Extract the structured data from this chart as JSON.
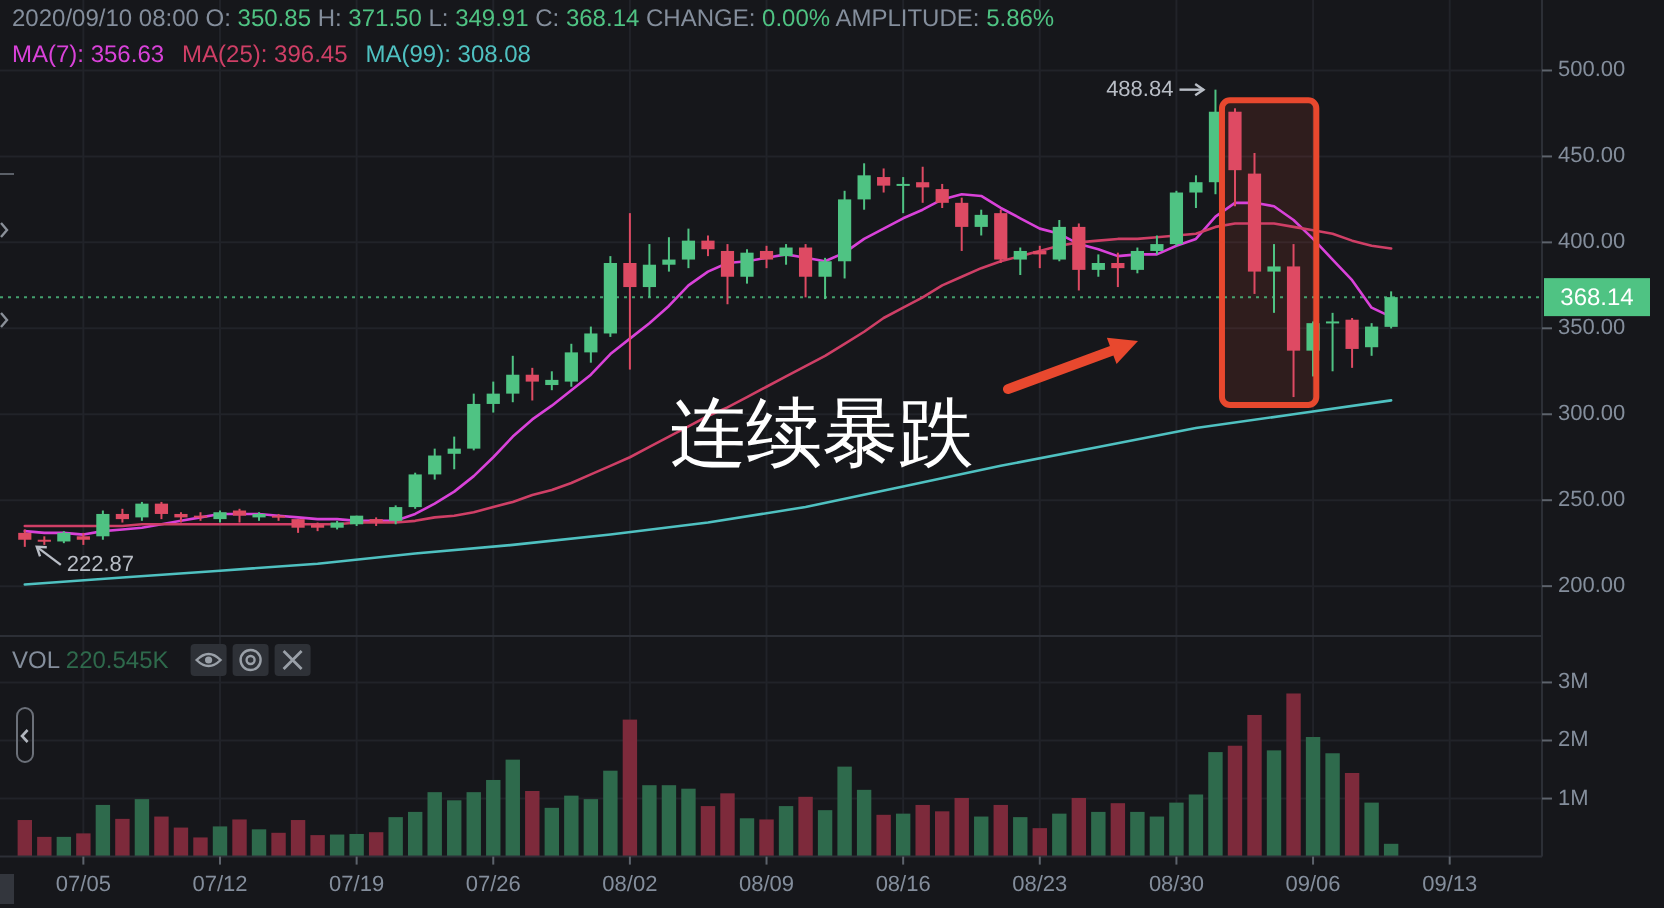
{
  "chart_data": [
    {
      "type": "candlestick",
      "title": "2020/09/10 08:00 O: 350.85 H: 371.50 L: 349.91 C: 368.14 CHANGE: 0.00% AMPLITUDE: 5.86%",
      "x": [
        "2020-07-02",
        "2020-07-03",
        "2020-07-04",
        "2020-07-05",
        "2020-07-06",
        "2020-07-07",
        "2020-07-08",
        "2020-07-09",
        "2020-07-10",
        "2020-07-11",
        "2020-07-12",
        "2020-07-13",
        "2020-07-14",
        "2020-07-15",
        "2020-07-16",
        "2020-07-17",
        "2020-07-18",
        "2020-07-19",
        "2020-07-20",
        "2020-07-21",
        "2020-07-22",
        "2020-07-23",
        "2020-07-24",
        "2020-07-25",
        "2020-07-26",
        "2020-07-27",
        "2020-07-28",
        "2020-07-29",
        "2020-07-30",
        "2020-07-31",
        "2020-08-01",
        "2020-08-02",
        "2020-08-03",
        "2020-08-04",
        "2020-08-05",
        "2020-08-06",
        "2020-08-07",
        "2020-08-08",
        "2020-08-09",
        "2020-08-10",
        "2020-08-11",
        "2020-08-12",
        "2020-08-13",
        "2020-08-14",
        "2020-08-15",
        "2020-08-16",
        "2020-08-17",
        "2020-08-18",
        "2020-08-19",
        "2020-08-20",
        "2020-08-21",
        "2020-08-22",
        "2020-08-23",
        "2020-08-24",
        "2020-08-25",
        "2020-08-26",
        "2020-08-27",
        "2020-08-28",
        "2020-08-29",
        "2020-08-30",
        "2020-08-31",
        "2020-09-01",
        "2020-09-02",
        "2020-09-03",
        "2020-09-04",
        "2020-09-05",
        "2020-09-06",
        "2020-09-07",
        "2020-09-08",
        "2020-09-09",
        "2020-09-10"
      ],
      "ohlc": [
        [
          231,
          233,
          222.87,
          227
        ],
        [
          227,
          229,
          224,
          226
        ],
        [
          226,
          232,
          225,
          231
        ],
        [
          229,
          231,
          224,
          227
        ],
        [
          229,
          244,
          227,
          242
        ],
        [
          242,
          245,
          237,
          239
        ],
        [
          240,
          249,
          238,
          248
        ],
        [
          248,
          249,
          239,
          242
        ],
        [
          242,
          243,
          237,
          240
        ],
        [
          241,
          243,
          238,
          240
        ],
        [
          239,
          244,
          237,
          243
        ],
        [
          244,
          245,
          237,
          241
        ],
        [
          240,
          243,
          238,
          242
        ],
        [
          241,
          242,
          238,
          240
        ],
        [
          239,
          239,
          231,
          234
        ],
        [
          236,
          237,
          232,
          234
        ],
        [
          234,
          238,
          233,
          237
        ],
        [
          236,
          241,
          235,
          241
        ],
        [
          239,
          240,
          235,
          237
        ],
        [
          238,
          247,
          236,
          246
        ],
        [
          246,
          266,
          245,
          265
        ],
        [
          265,
          280,
          262,
          276
        ],
        [
          277,
          287,
          268,
          280
        ],
        [
          280,
          312,
          279,
          306
        ],
        [
          306,
          319,
          301,
          312
        ],
        [
          312,
          334,
          307,
          323
        ],
        [
          323,
          327,
          308,
          319
        ],
        [
          317,
          325,
          314,
          320
        ],
        [
          319,
          341,
          316,
          336
        ],
        [
          336,
          351,
          330,
          347
        ],
        [
          347,
          392,
          345,
          388
        ],
        [
          388,
          417,
          326,
          374
        ],
        [
          374,
          399,
          368,
          387
        ],
        [
          387,
          403,
          383,
          390
        ],
        [
          390,
          408,
          385,
          401
        ],
        [
          401,
          404,
          392,
          396
        ],
        [
          395,
          399,
          364,
          380
        ],
        [
          380,
          396,
          376,
          394
        ],
        [
          395,
          398,
          385,
          390
        ],
        [
          392,
          399,
          387,
          397
        ],
        [
          397,
          399,
          368,
          380
        ],
        [
          380,
          391,
          367,
          389
        ],
        [
          389,
          430,
          379,
          425
        ],
        [
          425,
          446,
          419,
          439
        ],
        [
          438,
          443,
          429,
          433
        ],
        [
          433,
          438,
          417,
          434
        ],
        [
          435,
          444,
          423,
          432
        ],
        [
          431,
          434,
          420,
          423
        ],
        [
          423,
          426,
          395,
          409
        ],
        [
          409,
          419,
          404,
          416
        ],
        [
          417,
          419,
          388,
          390
        ],
        [
          390,
          397,
          381,
          395
        ],
        [
          395,
          398,
          385,
          393
        ],
        [
          390,
          413,
          389,
          409
        ],
        [
          409,
          411,
          372,
          384
        ],
        [
          384,
          393,
          380,
          388
        ],
        [
          388,
          394,
          374,
          385
        ],
        [
          384,
          397,
          382,
          395
        ],
        [
          395,
          404,
          393,
          399
        ],
        [
          399,
          430,
          398,
          429
        ],
        [
          429,
          439,
          420,
          435
        ],
        [
          435,
          488.84,
          428,
          476
        ],
        [
          476,
          478,
          421,
          442
        ],
        [
          440,
          452,
          370,
          383
        ],
        [
          383,
          399,
          359,
          386
        ],
        [
          386,
          399,
          310,
          337
        ],
        [
          337,
          354,
          322,
          353
        ],
        [
          353,
          359,
          325,
          354
        ],
        [
          355,
          356,
          327,
          338
        ],
        [
          339,
          353,
          334,
          351
        ],
        [
          350.85,
          371.5,
          349.91,
          368.14
        ]
      ],
      "colors": [
        "#de4a63",
        "#de4a63",
        "#4fc383",
        "#de4a63",
        "#4fc383",
        "#de4a63",
        "#4fc383",
        "#de4a63",
        "#de4a63",
        "#de4a63",
        "#4fc383",
        "#de4a63",
        "#4fc383",
        "#de4a63",
        "#de4a63",
        "#de4a63",
        "#4fc383",
        "#4fc383",
        "#de4a63",
        "#4fc383",
        "#4fc383",
        "#4fc383",
        "#4fc383",
        "#4fc383",
        "#4fc383",
        "#4fc383",
        "#de4a63",
        "#4fc383",
        "#4fc383",
        "#4fc383",
        "#4fc383",
        "#de4a63",
        "#4fc383",
        "#4fc383",
        "#4fc383",
        "#de4a63",
        "#de4a63",
        "#4fc383",
        "#de4a63",
        "#4fc383",
        "#de4a63",
        "#4fc383",
        "#4fc383",
        "#4fc383",
        "#de4a63",
        "#4fc383",
        "#de4a63",
        "#de4a63",
        "#de4a63",
        "#4fc383",
        "#de4a63",
        "#4fc383",
        "#de4a63",
        "#4fc383",
        "#de4a63",
        "#4fc383",
        "#de4a63",
        "#4fc383",
        "#4fc383",
        "#4fc383",
        "#4fc383",
        "#4fc383",
        "#de4a63",
        "#de4a63",
        "#4fc383",
        "#de4a63",
        "#4fc383",
        "#4fc383",
        "#de4a63",
        "#4fc383",
        "#4fc383"
      ],
      "series": [
        {
          "name": "MA(7): 356.63",
          "type": "line",
          "color": "#d942d9",
          "values": [
            232,
            231,
            231,
            230,
            232,
            233,
            234,
            236,
            238,
            240,
            242,
            242,
            242,
            241,
            240,
            239,
            239,
            238,
            238,
            238,
            242,
            248,
            255,
            264,
            275,
            287,
            297,
            305,
            314,
            323,
            335,
            344,
            353,
            363,
            375,
            383,
            388,
            389,
            391,
            393,
            391,
            389,
            394,
            402,
            408,
            414,
            419,
            425,
            428,
            427,
            420,
            414,
            408,
            405,
            399,
            396,
            392,
            393,
            393,
            398,
            402,
            415,
            423,
            423,
            421,
            413,
            402,
            390,
            378,
            362,
            356.63
          ]
        },
        {
          "name": "MA(25): 396.45",
          "type": "line",
          "color": "#cf3f66",
          "values": [
            235,
            235,
            235,
            235,
            235,
            235,
            236,
            236,
            236,
            236,
            236,
            236,
            236,
            236,
            236,
            236,
            236,
            237,
            237,
            237,
            238,
            240,
            241,
            243,
            246,
            249,
            253,
            256,
            260,
            265,
            270,
            275,
            281,
            287,
            293,
            299,
            304,
            310,
            316,
            322,
            328,
            334,
            341,
            348,
            356,
            362,
            368,
            375,
            380,
            385,
            389,
            392,
            395,
            398,
            400,
            401,
            402,
            402,
            403,
            404,
            405,
            409,
            411,
            411,
            411,
            409,
            407,
            405,
            401,
            398,
            396.45
          ]
        },
        {
          "name": "MA(99): 308.08",
          "type": "line",
          "color": "#4fc1c1",
          "x": [
            "2020-07-02",
            "2020-07-07",
            "2020-07-12",
            "2020-07-17",
            "2020-07-22",
            "2020-07-27",
            "2020-08-01",
            "2020-08-06",
            "2020-08-11",
            "2020-08-16",
            "2020-08-21",
            "2020-08-26",
            "2020-08-31",
            "2020-09-05",
            "2020-09-10"
          ],
          "values": [
            201,
            205,
            209,
            213,
            219,
            224,
            230,
            237,
            246,
            258,
            270,
            281,
            292,
            300,
            308.08
          ]
        }
      ],
      "xlim": [
        "2020-06-30T17:30",
        "2020-09-17T17:30"
      ],
      "ylim": [
        171,
        541
      ],
      "xticks": [
        {
          "value": "2020-07-05",
          "label": null
        },
        {
          "value": "2020-07-12",
          "label": null
        },
        {
          "value": "2020-07-19",
          "label": null
        },
        {
          "value": "2020-07-26",
          "label": null
        },
        {
          "value": "2020-08-02",
          "label": null
        },
        {
          "value": "2020-08-09",
          "label": null
        },
        {
          "value": "2020-08-16",
          "label": null
        },
        {
          "value": "2020-08-23",
          "label": null
        },
        {
          "value": "2020-08-30",
          "label": null
        },
        {
          "value": "2020-09-06",
          "label": null
        },
        {
          "value": "2020-09-13",
          "label": null
        }
      ],
      "yticks": [
        {
          "value": 200,
          "label": "200.00"
        },
        {
          "value": 250,
          "label": "250.00"
        },
        {
          "value": 300,
          "label": "300.00"
        },
        {
          "value": 350,
          "label": "350.00"
        },
        {
          "value": 400,
          "label": "400.00"
        },
        {
          "value": 450,
          "label": "450.00"
        },
        {
          "value": 500,
          "label": "500.00"
        }
      ],
      "tick_labels": "y",
      "grid": true,
      "legend": "top left",
      "ref_lines": [
        {
          "axis": "y",
          "value": 368.14,
          "label": "368.14",
          "color": "#4fc383",
          "line_style": "dotted"
        }
      ],
      "bands": [
        {
          "axis": "x",
          "from": "2020-09-01T08:00",
          "to": "2020-09-06T04:00",
          "color": "#e8482e"
        }
      ],
      "annotations": [
        {
          "text": "222.87",
          "x": "2020-07-02",
          "y": 222.87
        },
        {
          "text": "488.84",
          "x": "2020-09-01",
          "y": 488.84
        },
        "连续暴跌"
      ]
    },
    {
      "type": "bar",
      "x": [
        "2020-07-02",
        "2020-07-03",
        "2020-07-04",
        "2020-07-05",
        "2020-07-06",
        "2020-07-07",
        "2020-07-08",
        "2020-07-09",
        "2020-07-10",
        "2020-07-11",
        "2020-07-12",
        "2020-07-13",
        "2020-07-14",
        "2020-07-15",
        "2020-07-16",
        "2020-07-17",
        "2020-07-18",
        "2020-07-19",
        "2020-07-20",
        "2020-07-21",
        "2020-07-22",
        "2020-07-23",
        "2020-07-24",
        "2020-07-25",
        "2020-07-26",
        "2020-07-27",
        "2020-07-28",
        "2020-07-29",
        "2020-07-30",
        "2020-07-31",
        "2020-08-01",
        "2020-08-02",
        "2020-08-03",
        "2020-08-04",
        "2020-08-05",
        "2020-08-06",
        "2020-08-07",
        "2020-08-08",
        "2020-08-09",
        "2020-08-10",
        "2020-08-11",
        "2020-08-12",
        "2020-08-13",
        "2020-08-14",
        "2020-08-15",
        "2020-08-16",
        "2020-08-17",
        "2020-08-18",
        "2020-08-19",
        "2020-08-20",
        "2020-08-21",
        "2020-08-22",
        "2020-08-23",
        "2020-08-24",
        "2020-08-25",
        "2020-08-26",
        "2020-08-27",
        "2020-08-28",
        "2020-08-29",
        "2020-08-30",
        "2020-08-31",
        "2020-09-01",
        "2020-09-02",
        "2020-09-03",
        "2020-09-04",
        "2020-09-05",
        "2020-09-06",
        "2020-09-07",
        "2020-09-08",
        "2020-09-09",
        "2020-09-10"
      ],
      "series": [
        {
          "name": "VOL 220.545K",
          "values": [
            0.63,
            0.34,
            0.34,
            0.4,
            0.89,
            0.65,
            0.99,
            0.69,
            0.5,
            0.33,
            0.52,
            0.64,
            0.47,
            0.41,
            0.63,
            0.37,
            0.38,
            0.39,
            0.42,
            0.68,
            0.77,
            1.11,
            0.97,
            1.11,
            1.32,
            1.67,
            1.13,
            0.84,
            1.05,
            0.99,
            1.48,
            2.36,
            1.23,
            1.23,
            1.17,
            0.87,
            1.09,
            0.66,
            0.64,
            0.87,
            1.03,
            0.8,
            1.55,
            1.15,
            0.72,
            0.74,
            0.89,
            0.78,
            1.01,
            0.69,
            0.89,
            0.68,
            0.49,
            0.74,
            1.01,
            0.77,
            0.92,
            0.77,
            0.69,
            0.93,
            1.07,
            1.8,
            1.91,
            2.44,
            1.83,
            2.81,
            2.06,
            1.78,
            1.44,
            0.93,
            0.220545
          ],
          "colors": [
            "#7d2a3b",
            "#7d2a3b",
            "#2e6a4c",
            "#7d2a3b",
            "#2e6a4c",
            "#7d2a3b",
            "#2e6a4c",
            "#7d2a3b",
            "#7d2a3b",
            "#7d2a3b",
            "#2e6a4c",
            "#7d2a3b",
            "#2e6a4c",
            "#7d2a3b",
            "#7d2a3b",
            "#7d2a3b",
            "#2e6a4c",
            "#2e6a4c",
            "#7d2a3b",
            "#2e6a4c",
            "#2e6a4c",
            "#2e6a4c",
            "#2e6a4c",
            "#2e6a4c",
            "#2e6a4c",
            "#2e6a4c",
            "#7d2a3b",
            "#2e6a4c",
            "#2e6a4c",
            "#2e6a4c",
            "#2e6a4c",
            "#7d2a3b",
            "#2e6a4c",
            "#2e6a4c",
            "#2e6a4c",
            "#7d2a3b",
            "#7d2a3b",
            "#2e6a4c",
            "#7d2a3b",
            "#2e6a4c",
            "#7d2a3b",
            "#2e6a4c",
            "#2e6a4c",
            "#2e6a4c",
            "#7d2a3b",
            "#2e6a4c",
            "#7d2a3b",
            "#7d2a3b",
            "#7d2a3b",
            "#2e6a4c",
            "#7d2a3b",
            "#2e6a4c",
            "#7d2a3b",
            "#2e6a4c",
            "#7d2a3b",
            "#2e6a4c",
            "#7d2a3b",
            "#2e6a4c",
            "#2e6a4c",
            "#2e6a4c",
            "#2e6a4c",
            "#2e6a4c",
            "#7d2a3b",
            "#7d2a3b",
            "#2e6a4c",
            "#7d2a3b",
            "#2e6a4c",
            "#2e6a4c",
            "#7d2a3b",
            "#2e6a4c",
            "#2e6a4c"
          ]
        }
      ],
      "xlim": [
        "2020-06-30T17:30",
        "2020-09-17T17:30"
      ],
      "ylim": [
        0,
        3.8
      ],
      "xticks": [
        {
          "value": "2020-07-05",
          "label": "07/05"
        },
        {
          "value": "2020-07-12",
          "label": "07/12"
        },
        {
          "value": "2020-07-19",
          "label": "07/19"
        },
        {
          "value": "2020-07-26",
          "label": "07/26"
        },
        {
          "value": "2020-08-02",
          "label": "08/02"
        },
        {
          "value": "2020-08-09",
          "label": "08/09"
        },
        {
          "value": "2020-08-16",
          "label": "08/16"
        },
        {
          "value": "2020-08-23",
          "label": "08/23"
        },
        {
          "value": "2020-08-30",
          "label": "08/30"
        },
        {
          "value": "2020-09-06",
          "label": "09/06"
        },
        {
          "value": "2020-09-13",
          "label": "09/13"
        }
      ],
      "yticks": [
        {
          "value": 1,
          "label": "1M"
        },
        {
          "value": 2,
          "label": "2M"
        },
        {
          "value": 3,
          "label": "3M"
        }
      ],
      "grid": true,
      "legend": "top left"
    }
  ]
}
